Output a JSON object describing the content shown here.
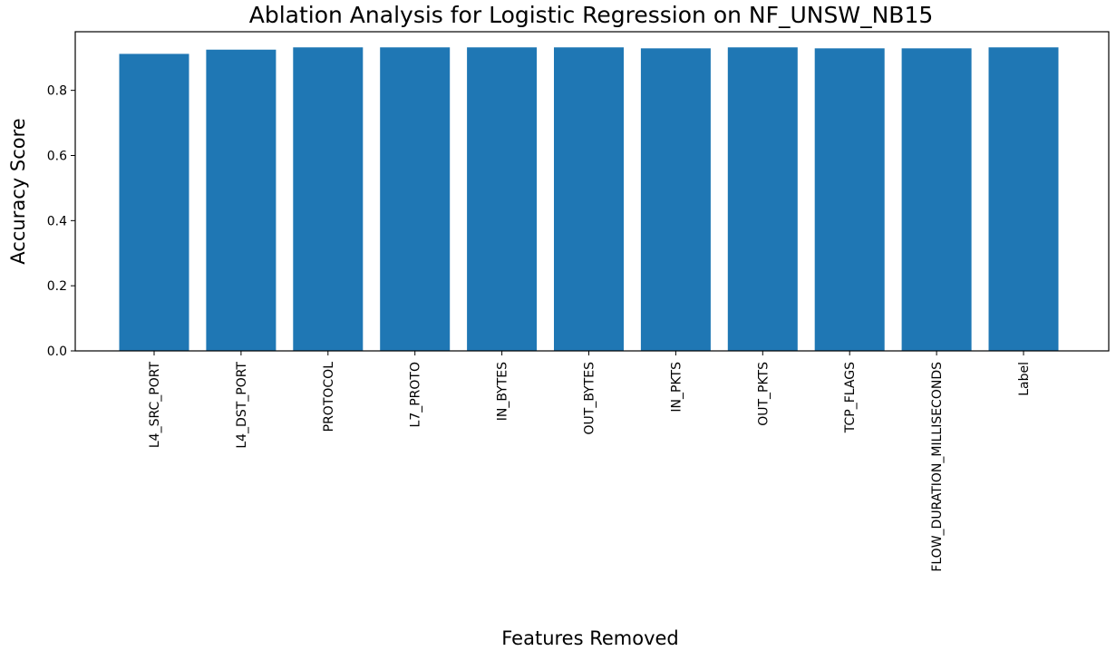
{
  "chart_data": {
    "type": "bar",
    "title": "Ablation Analysis for Logistic Regression on NF_UNSW_NB15",
    "xlabel": "Features Removed",
    "ylabel": "Accuracy Score",
    "categories": [
      "L4_SRC_PORT",
      "L4_DST_PORT",
      "PROTOCOL",
      "L7_PROTO",
      "IN_BYTES",
      "OUT_BYTES",
      "IN_PKTS",
      "OUT_PKTS",
      "TCP_FLAGS",
      "FLOW_DURATION_MILLISECONDS",
      "Label"
    ],
    "values": [
      0.912,
      0.925,
      0.932,
      0.932,
      0.932,
      0.932,
      0.929,
      0.932,
      0.929,
      0.929,
      0.932
    ],
    "ylim": [
      0,
      0.98
    ],
    "yticks": [
      0.0,
      0.2,
      0.4,
      0.6,
      0.8
    ],
    "ytick_labels": [
      "0.0",
      "0.2",
      "0.4",
      "0.6",
      "0.8"
    ],
    "bar_color": "#1f77b4",
    "grid": false,
    "legend": "none"
  }
}
